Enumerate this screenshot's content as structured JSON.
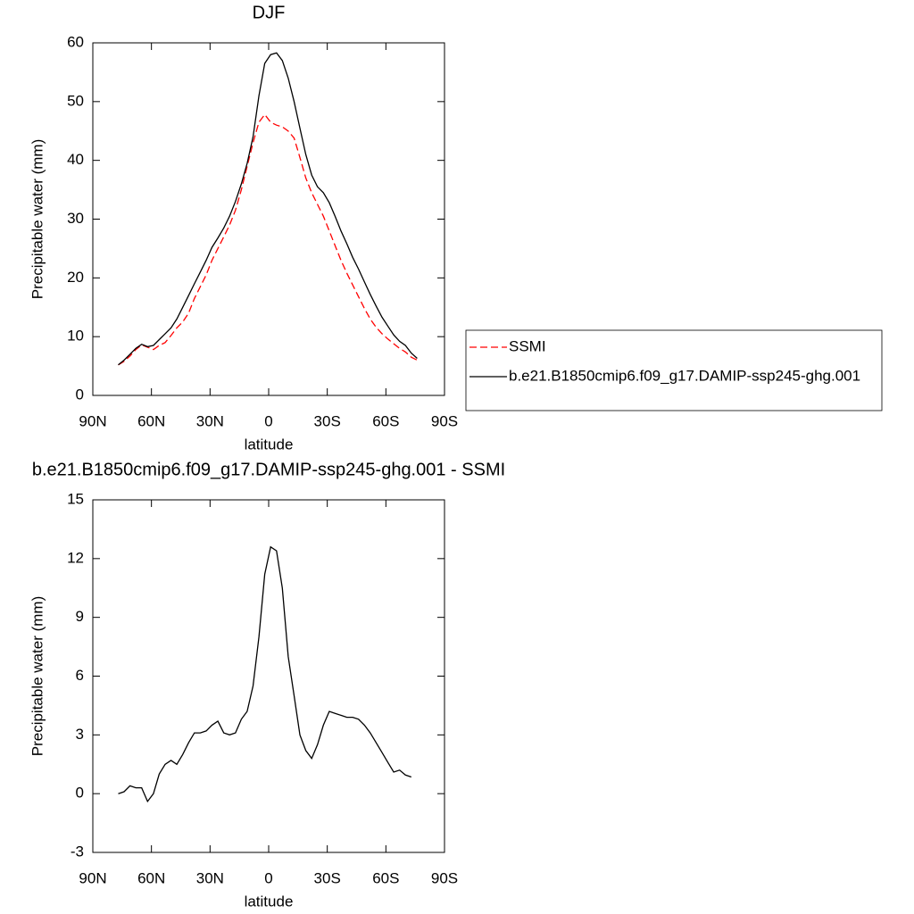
{
  "chart_data": [
    {
      "type": "line",
      "title": "DJF",
      "xlabel": "latitude",
      "ylabel": "Precipitable water (mm)",
      "x": [
        77,
        74,
        71,
        68,
        65,
        62,
        59,
        56,
        53,
        50,
        47,
        44,
        41,
        38,
        35,
        32,
        29,
        26,
        23,
        20,
        17,
        14,
        11,
        8,
        5,
        2,
        -1,
        -4,
        -7,
        -10,
        -13,
        -16,
        -19,
        -22,
        -25,
        -28,
        -31,
        -34,
        -37,
        -40,
        -43,
        -46,
        -49,
        -52,
        -55,
        -58,
        -61,
        -64,
        -67,
        -70,
        -73,
        -76
      ],
      "series": [
        {
          "name": "SSMI",
          "color": "#ff0000",
          "line_style": "dashed",
          "values": [
            5.2,
            5.8,
            6.7,
            7.8,
            8.6,
            8.2,
            7.8,
            8.5,
            9.0,
            10.2,
            11.5,
            12.5,
            14,
            16.5,
            18.5,
            20.5,
            23,
            25,
            27,
            29,
            31.5,
            35,
            39,
            43,
            46.5,
            47.8,
            46.5,
            46,
            45.7,
            45,
            43.8,
            40.5,
            37,
            34.5,
            32.5,
            30.5,
            28,
            25.5,
            23,
            20.8,
            18.8,
            16.8,
            14.8,
            13,
            11.6,
            10.5,
            9.6,
            8.8,
            8,
            7.4,
            6.5,
            6.0
          ]
        },
        {
          "name": "b.e21.B1850cmip6.f09_g17.DAMIP-ssp245-ghg.001",
          "color": "#000000",
          "line_style": "solid",
          "values": [
            5.2,
            6.0,
            7.0,
            8.0,
            8.7,
            8.3,
            8.5,
            9.5,
            10.5,
            11.5,
            13,
            15,
            17,
            19,
            21,
            23,
            25.2,
            26.8,
            28.5,
            30.5,
            33,
            36,
            39.5,
            44,
            51,
            56.5,
            58,
            58.3,
            57,
            54,
            50,
            45.5,
            41,
            37.5,
            35.5,
            34.5,
            32.8,
            30.5,
            28,
            25.8,
            23.5,
            21.5,
            19.3,
            17.2,
            15.2,
            13.3,
            11.8,
            10.3,
            9.2,
            8.5,
            7.2,
            6.3
          ]
        }
      ],
      "xlim": [
        90,
        -90
      ],
      "xticks": [
        {
          "value": 90,
          "label": "90N"
        },
        {
          "value": 60,
          "label": "60N"
        },
        {
          "value": 30,
          "label": "30N"
        },
        0,
        {
          "value": -30,
          "label": "30S"
        },
        {
          "value": -60,
          "label": "60S"
        },
        {
          "value": -90,
          "label": "90S"
        }
      ],
      "ylim": [
        0,
        60
      ],
      "yticks": [
        0,
        10,
        20,
        30,
        40,
        50,
        60
      ],
      "legend": "right"
    },
    {
      "type": "line",
      "title": "b.e21.B1850cmip6.f09_g17.DAMIP-ssp245-ghg.001 - SSMI",
      "xlabel": "latitude",
      "ylabel": "Precipitable water (mm)",
      "x": [
        77,
        74,
        71,
        68,
        65,
        62,
        59,
        56,
        53,
        50,
        47,
        44,
        41,
        38,
        35,
        32,
        29,
        26,
        23,
        20,
        17,
        14,
        11,
        8,
        5,
        2,
        -1,
        -4,
        -7,
        -10,
        -13,
        -16,
        -19,
        -22,
        -25,
        -28,
        -31,
        -34,
        -37,
        -40,
        -43,
        -46,
        -49,
        -52,
        -55,
        -58,
        -61,
        -64,
        -67,
        -70,
        -73
      ],
      "series": [
        {
          "color": "#000000",
          "line_style": "solid",
          "values": [
            0,
            0.1,
            0.4,
            0.3,
            0.3,
            -0.4,
            0,
            1.0,
            1.5,
            1.7,
            1.5,
            2.0,
            2.6,
            3.1,
            3.1,
            3.2,
            3.5,
            3.7,
            3.1,
            3.0,
            3.1,
            3.8,
            4.2,
            5.5,
            8.0,
            11.2,
            12.6,
            12.4,
            10.5,
            7.0,
            5.0,
            3.0,
            2.2,
            1.8,
            2.5,
            3.5,
            4.2,
            4.1,
            4.0,
            3.9,
            3.9,
            3.8,
            3.5,
            3.1,
            2.6,
            2.1,
            1.6,
            1.1,
            1.2,
            0.95,
            0.85
          ]
        }
      ],
      "xlim": [
        90,
        -90
      ],
      "xticks": [
        {
          "value": 90,
          "label": "90N"
        },
        {
          "value": 60,
          "label": "60N"
        },
        {
          "value": 30,
          "label": "30N"
        },
        0,
        {
          "value": -30,
          "label": "30S"
        },
        {
          "value": -60,
          "label": "60S"
        },
        {
          "value": -90,
          "label": "90S"
        }
      ],
      "ylim": [
        -3,
        15
      ],
      "yticks": [
        -3,
        0,
        3,
        6,
        9,
        12,
        15
      ]
    }
  ]
}
